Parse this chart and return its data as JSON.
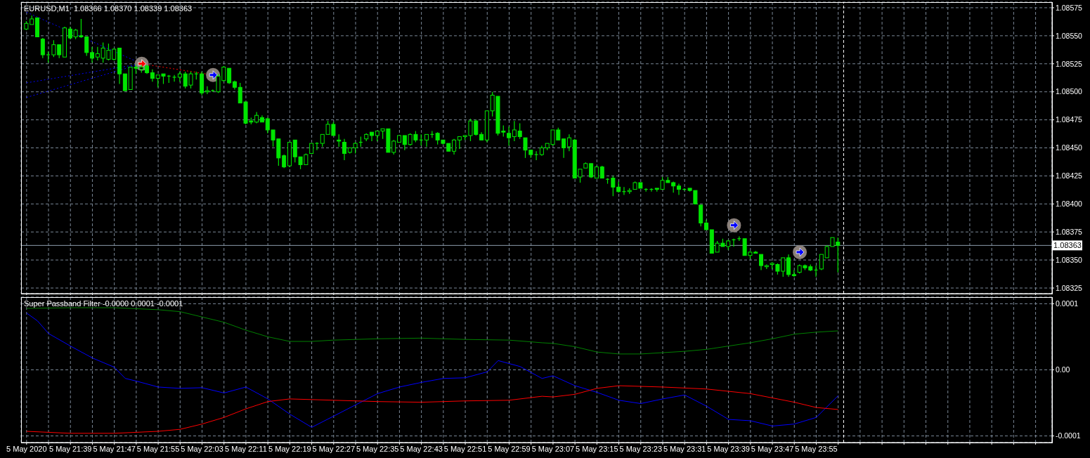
{
  "chart_data": [
    {
      "type": "candlestick",
      "title": "EURUSD,M1  1.08366 1.08370 1.08339 1.08363",
      "color": "#00e600",
      "x": [
        "2020-05-05T21:31",
        "2020-05-05T21:32",
        "2020-05-05T21:33",
        "2020-05-05T21:34",
        "2020-05-05T21:35",
        "2020-05-05T21:36",
        "2020-05-05T21:37",
        "2020-05-05T21:38",
        "2020-05-05T21:39",
        "2020-05-05T21:40",
        "2020-05-05T21:41",
        "2020-05-05T21:42",
        "2020-05-05T21:43",
        "2020-05-05T21:44",
        "2020-05-05T21:45",
        "2020-05-05T21:46",
        "2020-05-05T21:47",
        "2020-05-05T21:48",
        "2020-05-05T21:49",
        "2020-05-05T21:50",
        "2020-05-05T21:51",
        "2020-05-05T21:52",
        "2020-05-05T21:53",
        "2020-05-05T21:54",
        "2020-05-05T21:55",
        "2020-05-05T21:56",
        "2020-05-05T21:57",
        "2020-05-05T21:58",
        "2020-05-05T21:59",
        "2020-05-05T22:00",
        "2020-05-05T22:01",
        "2020-05-05T22:02",
        "2020-05-05T22:03",
        "2020-05-05T22:04",
        "2020-05-05T22:05",
        "2020-05-05T22:06",
        "2020-05-05T22:07",
        "2020-05-05T22:08",
        "2020-05-05T22:09",
        "2020-05-05T22:10",
        "2020-05-05T22:11",
        "2020-05-05T22:12",
        "2020-05-05T22:13",
        "2020-05-05T22:14",
        "2020-05-05T22:15",
        "2020-05-05T22:16",
        "2020-05-05T22:17",
        "2020-05-05T22:18",
        "2020-05-05T22:19",
        "2020-05-05T22:20",
        "2020-05-05T22:21",
        "2020-05-05T22:22",
        "2020-05-05T22:23",
        "2020-05-05T22:24",
        "2020-05-05T22:25",
        "2020-05-05T22:26",
        "2020-05-05T22:27",
        "2020-05-05T22:28",
        "2020-05-05T22:29",
        "2020-05-05T22:30",
        "2020-05-05T22:31",
        "2020-05-05T22:32",
        "2020-05-05T22:33",
        "2020-05-05T22:34",
        "2020-05-05T22:35",
        "2020-05-05T22:36",
        "2020-05-05T22:37",
        "2020-05-05T22:38",
        "2020-05-05T22:39",
        "2020-05-05T22:40",
        "2020-05-05T22:41",
        "2020-05-05T22:42",
        "2020-05-05T22:43",
        "2020-05-05T22:44",
        "2020-05-05T22:45",
        "2020-05-05T22:46",
        "2020-05-05T22:47",
        "2020-05-05T22:48",
        "2020-05-05T22:49",
        "2020-05-05T22:50",
        "2020-05-05T22:51",
        "2020-05-05T22:52",
        "2020-05-05T22:53",
        "2020-05-05T22:54",
        "2020-05-05T22:55",
        "2020-05-05T22:56",
        "2020-05-05T22:57",
        "2020-05-05T22:58",
        "2020-05-05T22:59",
        "2020-05-05T23:00",
        "2020-05-05T23:01",
        "2020-05-05T23:02",
        "2020-05-05T23:03",
        "2020-05-05T23:04",
        "2020-05-05T23:05",
        "2020-05-05T23:06",
        "2020-05-05T23:07",
        "2020-05-05T23:08",
        "2020-05-05T23:09",
        "2020-05-05T23:10",
        "2020-05-05T23:11",
        "2020-05-05T23:12",
        "2020-05-05T23:13",
        "2020-05-05T23:14",
        "2020-05-05T23:15",
        "2020-05-05T23:16",
        "2020-05-05T23:17",
        "2020-05-05T23:18",
        "2020-05-05T23:19",
        "2020-05-05T23:20",
        "2020-05-05T23:21",
        "2020-05-05T23:22",
        "2020-05-05T23:23",
        "2020-05-05T23:24",
        "2020-05-05T23:25",
        "2020-05-05T23:26",
        "2020-05-05T23:27",
        "2020-05-05T23:28",
        "2020-05-05T23:29",
        "2020-05-05T23:30",
        "2020-05-05T23:31",
        "2020-05-05T23:32",
        "2020-05-05T23:33",
        "2020-05-05T23:34",
        "2020-05-05T23:35",
        "2020-05-05T23:36",
        "2020-05-05T23:37",
        "2020-05-05T23:38",
        "2020-05-05T23:39",
        "2020-05-05T23:40",
        "2020-05-05T23:41",
        "2020-05-05T23:42",
        "2020-05-05T23:43",
        "2020-05-05T23:44",
        "2020-05-05T23:45",
        "2020-05-05T23:46",
        "2020-05-05T23:47",
        "2020-05-05T23:48",
        "2020-05-05T23:49",
        "2020-05-05T23:50",
        "2020-05-05T23:51",
        "2020-05-05T23:52",
        "2020-05-05T23:53",
        "2020-05-05T23:54",
        "2020-05-05T23:55",
        "2020-05-05T23:56",
        "2020-05-05T23:57",
        "2020-05-05T23:58",
        "2020-05-05T23:59"
      ],
      "ohlc": [
        [
          1.08556,
          1.08563,
          1.08555,
          1.08561
        ],
        [
          1.0856,
          1.08568,
          1.0856,
          1.08565
        ],
        [
          1.08566,
          1.08566,
          1.08549,
          1.08549
        ],
        [
          1.08547,
          1.08548,
          1.0853,
          1.08533
        ],
        [
          1.08533,
          1.08536,
          1.08526,
          1.08533
        ],
        [
          1.08533,
          1.08546,
          1.08531,
          1.08542
        ],
        [
          1.08542,
          1.08542,
          1.0853,
          1.08533
        ],
        [
          1.08531,
          1.08558,
          1.08531,
          1.08557
        ],
        [
          1.08556,
          1.08558,
          1.08547,
          1.08548
        ],
        [
          1.08549,
          1.08556,
          1.08547,
          1.08555
        ],
        [
          1.0855,
          1.08565,
          1.08548,
          1.08549
        ],
        [
          1.08549,
          1.08549,
          1.08532,
          1.08535
        ],
        [
          1.08535,
          1.0854,
          1.08526,
          1.0853
        ],
        [
          1.08531,
          1.0854,
          1.08528,
          1.08534
        ],
        [
          1.0853,
          1.08544,
          1.08526,
          1.08539
        ],
        [
          1.08529,
          1.08543,
          1.08528,
          1.08537
        ],
        [
          1.08529,
          1.08539,
          1.08528,
          1.08538
        ],
        [
          1.08539,
          1.08539,
          1.08507,
          1.08516
        ],
        [
          1.08516,
          1.08516,
          1.08501,
          1.08501
        ],
        [
          1.08502,
          1.08522,
          1.08502,
          1.08522
        ],
        [
          1.08522,
          1.08524,
          1.08516,
          1.08521
        ],
        [
          1.0852,
          1.08524,
          1.08517,
          1.08522
        ],
        [
          1.08523,
          1.08524,
          1.08516,
          1.08517
        ],
        [
          1.08517,
          1.0852,
          1.08509,
          1.08512
        ],
        [
          1.08512,
          1.08515,
          1.08504,
          1.08515
        ],
        [
          1.08516,
          1.08516,
          1.08507,
          1.08514
        ],
        [
          1.08514,
          1.08515,
          1.08508,
          1.08514
        ],
        [
          1.08513,
          1.08515,
          1.08509,
          1.08513
        ],
        [
          1.08513,
          1.08518,
          1.08509,
          1.08516
        ],
        [
          1.08516,
          1.08518,
          1.08503,
          1.08505
        ],
        [
          1.08506,
          1.08518,
          1.08503,
          1.08516
        ],
        [
          1.08516,
          1.08518,
          1.08511,
          1.08516
        ],
        [
          1.08516,
          1.08518,
          1.08497,
          1.08499
        ],
        [
          1.085,
          1.08505,
          1.08498,
          1.08501
        ],
        [
          1.08501,
          1.08502,
          1.085,
          1.08501
        ],
        [
          1.085,
          1.08516,
          1.08499,
          1.08514
        ],
        [
          1.0851,
          1.08523,
          1.08509,
          1.08522
        ],
        [
          1.08521,
          1.08521,
          1.08507,
          1.08508
        ],
        [
          1.08509,
          1.0851,
          1.08502,
          1.08504
        ],
        [
          1.08504,
          1.08508,
          1.0849,
          1.0849
        ],
        [
          1.08491,
          1.08491,
          1.08471,
          1.08472
        ],
        [
          1.08474,
          1.08477,
          1.08471,
          1.08473
        ],
        [
          1.08473,
          1.08482,
          1.08472,
          1.08479
        ],
        [
          1.08477,
          1.08479,
          1.08473,
          1.08473
        ],
        [
          1.08476,
          1.08477,
          1.08463,
          1.08466
        ],
        [
          1.08466,
          1.08466,
          1.08451,
          1.08457
        ],
        [
          1.08458,
          1.08458,
          1.08434,
          1.08441
        ],
        [
          1.08443,
          1.08444,
          1.08432,
          1.08433
        ],
        [
          1.08434,
          1.08455,
          1.08433,
          1.08455
        ],
        [
          1.08457,
          1.08457,
          1.08437,
          1.08442
        ],
        [
          1.08442,
          1.08442,
          1.08431,
          1.08435
        ],
        [
          1.08435,
          1.08445,
          1.08435,
          1.08444
        ],
        [
          1.08445,
          1.08454,
          1.08445,
          1.08454
        ],
        [
          1.08454,
          1.08455,
          1.08448,
          1.08454
        ],
        [
          1.08454,
          1.08462,
          1.08451,
          1.08462
        ],
        [
          1.08462,
          1.08474,
          1.08462,
          1.08471
        ],
        [
          1.08471,
          1.08473,
          1.08461,
          1.08461
        ],
        [
          1.08457,
          1.08462,
          1.08451,
          1.08456
        ],
        [
          1.08455,
          1.08458,
          1.08439,
          1.08445
        ],
        [
          1.08446,
          1.0845,
          1.08445,
          1.0845
        ],
        [
          1.0845,
          1.08455,
          1.08445,
          1.08454
        ],
        [
          1.08455,
          1.0846,
          1.08451,
          1.08455
        ],
        [
          1.08458,
          1.08463,
          1.08456,
          1.08462
        ],
        [
          1.08464,
          1.08464,
          1.08456,
          1.08461
        ],
        [
          1.08461,
          1.08465,
          1.08456,
          1.08465
        ],
        [
          1.08465,
          1.08467,
          1.08458,
          1.08467
        ],
        [
          1.08467,
          1.08467,
          1.08446,
          1.08446
        ],
        [
          1.08446,
          1.08457,
          1.08444,
          1.08456
        ],
        [
          1.08455,
          1.08461,
          1.08455,
          1.08461
        ],
        [
          1.08461,
          1.08461,
          1.08448,
          1.08453
        ],
        [
          1.08453,
          1.08463,
          1.08452,
          1.08462
        ],
        [
          1.08462,
          1.08465,
          1.08455,
          1.08457
        ],
        [
          1.08457,
          1.08462,
          1.08452,
          1.08457
        ],
        [
          1.08457,
          1.08462,
          1.08451,
          1.08462
        ],
        [
          1.08462,
          1.08465,
          1.08459,
          1.08462
        ],
        [
          1.08463,
          1.08464,
          1.08453,
          1.08457
        ],
        [
          1.08457,
          1.08457,
          1.08453,
          1.08454
        ],
        [
          1.08454,
          1.08454,
          1.08447,
          1.08447
        ],
        [
          1.08447,
          1.08458,
          1.08444,
          1.08457
        ],
        [
          1.08457,
          1.0846,
          1.08449,
          1.0846
        ],
        [
          1.0846,
          1.08461,
          1.08457,
          1.08461
        ],
        [
          1.08461,
          1.08476,
          1.08456,
          1.08474
        ],
        [
          1.08474,
          1.08475,
          1.08461,
          1.08462
        ],
        [
          1.08462,
          1.08464,
          1.08457,
          1.08457
        ],
        [
          1.08457,
          1.08483,
          1.08455,
          1.08483
        ],
        [
          1.08483,
          1.085,
          1.08478,
          1.08497
        ],
        [
          1.08496,
          1.08496,
          1.08461,
          1.08463
        ],
        [
          1.08465,
          1.0847,
          1.0846,
          1.08464
        ],
        [
          1.08463,
          1.08469,
          1.08452,
          1.08459
        ],
        [
          1.0846,
          1.08474,
          1.08456,
          1.08466
        ],
        [
          1.08465,
          1.08472,
          1.08458,
          1.0846
        ],
        [
          1.08459,
          1.08459,
          1.08441,
          1.08448
        ],
        [
          1.08448,
          1.08448,
          1.08441,
          1.08444
        ],
        [
          1.08444,
          1.08447,
          1.08439,
          1.08444
        ],
        [
          1.08444,
          1.08452,
          1.08443,
          1.0845
        ],
        [
          1.0845,
          1.08454,
          1.08448,
          1.08454
        ],
        [
          1.08453,
          1.08466,
          1.08452,
          1.08466
        ],
        [
          1.08466,
          1.08468,
          1.08457,
          1.08457
        ],
        [
          1.08458,
          1.08458,
          1.08441,
          1.0845
        ],
        [
          1.08451,
          1.08462,
          1.08447,
          1.08459
        ],
        [
          1.08457,
          1.08458,
          1.08423,
          1.08423
        ],
        [
          1.08424,
          1.08431,
          1.08419,
          1.08431
        ],
        [
          1.08432,
          1.08437,
          1.08432,
          1.08436
        ],
        [
          1.08436,
          1.08436,
          1.08423,
          1.08424
        ],
        [
          1.08423,
          1.08434,
          1.08423,
          1.08433
        ],
        [
          1.08433,
          1.08434,
          1.08423,
          1.08423
        ],
        [
          1.08422,
          1.08423,
          1.08418,
          1.08422
        ],
        [
          1.08423,
          1.08425,
          1.08407,
          1.08415
        ],
        [
          1.08415,
          1.0842,
          1.0841,
          1.08411
        ],
        [
          1.08411,
          1.08415,
          1.08408,
          1.08411
        ],
        [
          1.08411,
          1.08414,
          1.08409,
          1.08412
        ],
        [
          1.08413,
          1.0842,
          1.08413,
          1.08419
        ],
        [
          1.08419,
          1.08419,
          1.08414,
          1.08414
        ],
        [
          1.08413,
          1.08414,
          1.08411,
          1.08413
        ],
        [
          1.08413,
          1.08414,
          1.08411,
          1.08413
        ],
        [
          1.08414,
          1.08414,
          1.08411,
          1.08413
        ],
        [
          1.08413,
          1.08424,
          1.08413,
          1.08421
        ],
        [
          1.08421,
          1.08424,
          1.08419,
          1.08419
        ],
        [
          1.08419,
          1.0842,
          1.0841,
          1.08416
        ],
        [
          1.08416,
          1.08418,
          1.08408,
          1.08413
        ],
        [
          1.08413,
          1.08414,
          1.08412,
          1.08413
        ],
        [
          1.08414,
          1.08414,
          1.08411,
          1.08412
        ],
        [
          1.08412,
          1.08412,
          1.084,
          1.084
        ],
        [
          1.08399,
          1.08399,
          1.0838,
          1.08383
        ],
        [
          1.08383,
          1.08386,
          1.08377,
          1.08377
        ],
        [
          1.08377,
          1.08377,
          1.08356,
          1.08356
        ],
        [
          1.08357,
          1.08367,
          1.08357,
          1.08365
        ],
        [
          1.08365,
          1.08369,
          1.08362,
          1.08362
        ],
        [
          1.08362,
          1.08368,
          1.08359,
          1.08367
        ],
        [
          1.08368,
          1.08369,
          1.08362,
          1.08368
        ],
        [
          1.08369,
          1.08371,
          1.08367,
          1.08369
        ],
        [
          1.08369,
          1.08369,
          1.08354,
          1.08354
        ],
        [
          1.08354,
          1.08358,
          1.08351,
          1.08357
        ],
        [
          1.08357,
          1.08358,
          1.08356,
          1.08356
        ],
        [
          1.08355,
          1.08355,
          1.08341,
          1.08345
        ],
        [
          1.08344,
          1.08346,
          1.08342,
          1.08345
        ],
        [
          1.08346,
          1.08348,
          1.08342,
          1.08347
        ],
        [
          1.08346,
          1.08347,
          1.08337,
          1.0834
        ],
        [
          1.0834,
          1.08352,
          1.08335,
          1.08352
        ],
        [
          1.08352,
          1.08355,
          1.08335,
          1.08337
        ],
        [
          1.08337,
          1.08341,
          1.08335,
          1.08336
        ],
        [
          1.08339,
          1.08346,
          1.08338,
          1.08345
        ],
        [
          1.08345,
          1.08346,
          1.08341,
          1.08343
        ],
        [
          1.08344,
          1.08346,
          1.0834,
          1.08341
        ],
        [
          1.08341,
          1.08345,
          1.08335,
          1.08341
        ],
        [
          1.08342,
          1.08355,
          1.08341,
          1.08355
        ],
        [
          1.08352,
          1.08363,
          1.08352,
          1.08362
        ],
        [
          1.08362,
          1.0837,
          1.08362,
          1.0837
        ],
        [
          1.08366,
          1.0837,
          1.08339,
          1.08363
        ]
      ],
      "series": [
        {
          "type": "line",
          "color": "#0000ff",
          "line_style": "dotted",
          "x": [
            "2020-05-05T21:31",
            "2020-05-05T21:52"
          ],
          "values": [
            1.08571,
            1.08525
          ]
        },
        {
          "type": "line",
          "color": "#0000ff",
          "line_style": "dotted",
          "x": [
            "2020-05-05T21:31",
            "2020-05-05T21:52"
          ],
          "values": [
            1.08508,
            1.08525
          ]
        },
        {
          "type": "line",
          "color": "#0000ff",
          "line_style": "dotted",
          "x": [
            "2020-05-05T21:31",
            "2020-05-05T21:52"
          ],
          "values": [
            1.08495,
            1.08525
          ]
        },
        {
          "type": "line",
          "color": "#ff0000",
          "line_style": "dotted",
          "x": [
            "2020-05-05T21:52",
            "2020-05-05T22:05"
          ],
          "values": [
            1.08525,
            1.08515
          ]
        },
        {
          "type": "scatter",
          "x": [
            "2020-05-05T21:52",
            "2020-05-05T22:05",
            "2020-05-05T23:40",
            "2020-05-05T23:52"
          ],
          "values": [
            1.08525,
            1.08515,
            1.08381,
            1.08357
          ],
          "colors": [
            "#ff0000",
            "#0000ff",
            "#0000ff",
            "#0000ff"
          ]
        }
      ],
      "xlim": [
        "2020-05-05T21:30",
        "2020-05-06T00:38"
      ],
      "ylim": [
        1.0832,
        1.0858
      ],
      "xticks": [
        {
          "value": "2020-05-05T21:31",
          "label": null
        },
        {
          "value": "2020-05-05T21:35",
          "label": null
        },
        {
          "value": "2020-05-05T21:39",
          "label": null
        },
        {
          "value": "2020-05-05T21:43",
          "label": null
        },
        {
          "value": "2020-05-05T21:47",
          "label": null
        },
        {
          "value": "2020-05-05T21:51",
          "label": null
        },
        {
          "value": "2020-05-05T21:55",
          "label": null
        },
        {
          "value": "2020-05-05T21:59",
          "label": null
        },
        {
          "value": "2020-05-05T22:03",
          "label": null
        },
        {
          "value": "2020-05-05T22:07",
          "label": null
        },
        {
          "value": "2020-05-05T22:11",
          "label": null
        },
        {
          "value": "2020-05-05T22:15",
          "label": null
        },
        {
          "value": "2020-05-05T22:19",
          "label": null
        },
        {
          "value": "2020-05-05T22:23",
          "label": null
        },
        {
          "value": "2020-05-05T22:27",
          "label": null
        },
        {
          "value": "2020-05-05T22:31",
          "label": null
        },
        {
          "value": "2020-05-05T22:35",
          "label": null
        },
        {
          "value": "2020-05-05T22:39",
          "label": null
        },
        {
          "value": "2020-05-05T22:43",
          "label": null
        },
        {
          "value": "2020-05-05T22:47",
          "label": null
        },
        {
          "value": "2020-05-05T22:51",
          "label": null
        },
        {
          "value": "2020-05-05T22:55",
          "label": null
        },
        {
          "value": "2020-05-05T22:59",
          "label": null
        },
        {
          "value": "2020-05-05T23:03",
          "label": null
        },
        {
          "value": "2020-05-05T23:07",
          "label": null
        },
        {
          "value": "2020-05-05T23:11",
          "label": null
        },
        {
          "value": "2020-05-05T23:15",
          "label": null
        },
        {
          "value": "2020-05-05T23:19",
          "label": null
        },
        {
          "value": "2020-05-05T23:23",
          "label": null
        },
        {
          "value": "2020-05-05T23:27",
          "label": null
        },
        {
          "value": "2020-05-05T23:31",
          "label": null
        },
        {
          "value": "2020-05-05T23:35",
          "label": null
        },
        {
          "value": "2020-05-05T23:39",
          "label": null
        },
        {
          "value": "2020-05-05T23:43",
          "label": null
        },
        {
          "value": "2020-05-05T23:47",
          "label": null
        },
        {
          "value": "2020-05-05T23:51",
          "label": null
        },
        {
          "value": "2020-05-05T23:55",
          "label": null
        },
        {
          "value": "2020-05-05T23:59",
          "label": null
        },
        {
          "value": "2020-05-06T00:03",
          "label": null
        },
        {
          "value": "2020-05-06T00:07",
          "label": null
        },
        {
          "value": "2020-05-06T00:11",
          "label": null
        },
        {
          "value": "2020-05-06T00:15",
          "label": null
        },
        {
          "value": "2020-05-06T00:19",
          "label": null
        },
        {
          "value": "2020-05-06T00:23",
          "label": null
        },
        {
          "value": "2020-05-06T00:27",
          "label": null
        },
        {
          "value": "2020-05-06T00:31",
          "label": null
        },
        {
          "value": "2020-05-06T00:35",
          "label": null
        }
      ],
      "yticks": [
        1.08325,
        {
          "value": 1.0835,
          "label": "1.08350"
        },
        1.08375,
        {
          "value": 1.084,
          "label": "1.08400"
        },
        1.08425,
        {
          "value": 1.0845,
          "label": "1.08450"
        },
        1.08475,
        {
          "value": 1.085,
          "label": "1.08500"
        },
        1.08525,
        {
          "value": 1.0855,
          "label": "1.08550"
        },
        1.08575
      ],
      "grid": true,
      "tick_labels": "y",
      "ref_lines": [
        {
          "axis": "y",
          "value": 1.08363,
          "label": "1.08363",
          "color": "#8c9cab"
        },
        {
          "axis": "x",
          "value": "2020-05-06T00:00",
          "color": "#ffffff",
          "line_style": "dashed"
        }
      ]
    },
    {
      "type": "line",
      "title": "Super Passband Filter -0.0000 0.0001 -0.0001",
      "series": [
        {
          "color": "#008000",
          "x": [
            "2020-05-05T21:31",
            "2020-05-05T21:39",
            "2020-05-05T21:47",
            "2020-05-05T21:55",
            "2020-05-05T21:59",
            "2020-05-05T22:03",
            "2020-05-05T22:07",
            "2020-05-05T22:11",
            "2020-05-05T22:15",
            "2020-05-05T22:19",
            "2020-05-05T22:23",
            "2020-05-05T22:27",
            "2020-05-05T22:35",
            "2020-05-05T22:43",
            "2020-05-05T22:51",
            "2020-05-05T22:59",
            "2020-05-05T23:05",
            "2020-05-05T23:07",
            "2020-05-05T23:11",
            "2020-05-05T23:15",
            "2020-05-05T23:19",
            "2020-05-05T23:23",
            "2020-05-05T23:27",
            "2020-05-05T23:31",
            "2020-05-05T23:35",
            "2020-05-05T23:39",
            "2020-05-05T23:43",
            "2020-05-05T23:47",
            "2020-05-05T23:51",
            "2020-05-05T23:55",
            "2020-05-05T23:59"
          ],
          "values": [
            9.3e-05,
            9.4e-05,
            9.4e-05,
            9.1e-05,
            8.8e-05,
            8e-05,
            7.2e-05,
            6e-05,
            5e-05,
            4.3e-05,
            4.3e-05,
            4.5e-05,
            4.7e-05,
            4.8e-05,
            4.6e-05,
            4.5e-05,
            4.1e-05,
            4e-05,
            3.5e-05,
            2.7e-05,
            2.4e-05,
            2.4e-05,
            2.6e-05,
            2.8e-05,
            3.1e-05,
            3.6e-05,
            4.1e-05,
            4.7e-05,
            5.4e-05,
            5.7e-05,
            5.9e-05
          ]
        },
        {
          "color": "#0000ff",
          "x": [
            "2020-05-05T21:31",
            "2020-05-05T21:33",
            "2020-05-05T21:35",
            "2020-05-05T21:39",
            "2020-05-05T21:43",
            "2020-05-05T21:47",
            "2020-05-05T21:49",
            "2020-05-05T21:51",
            "2020-05-05T21:55",
            "2020-05-05T21:59",
            "2020-05-05T22:03",
            "2020-05-05T22:07",
            "2020-05-05T22:11",
            "2020-05-05T22:15",
            "2020-05-05T22:19",
            "2020-05-05T22:23",
            "2020-05-05T22:27",
            "2020-05-05T22:31",
            "2020-05-05T22:35",
            "2020-05-05T22:39",
            "2020-05-05T22:43",
            "2020-05-05T22:47",
            "2020-05-05T22:51",
            "2020-05-05T22:55",
            "2020-05-05T22:57",
            "2020-05-05T23:01",
            "2020-05-05T23:05",
            "2020-05-05T23:07",
            "2020-05-05T23:11",
            "2020-05-05T23:15",
            "2020-05-05T23:19",
            "2020-05-05T23:23",
            "2020-05-05T23:27",
            "2020-05-05T23:31",
            "2020-05-05T23:35",
            "2020-05-05T23:39",
            "2020-05-05T23:43",
            "2020-05-05T23:47",
            "2020-05-05T23:51",
            "2020-05-05T23:55",
            "2020-05-05T23:59"
          ],
          "values": [
            8.6e-05,
            7.4e-05,
            5.5e-05,
            3.6e-05,
            1.8e-05,
            4e-06,
            -1.3e-05,
            -1.7e-05,
            -2.6e-05,
            -2.8e-05,
            -2.7e-05,
            -3.5e-05,
            -2.6e-05,
            -4.4e-05,
            -6.7e-05,
            -8.7e-05,
            -7e-05,
            -5.3e-05,
            -3.6e-05,
            -2.6e-05,
            -1.9e-05,
            -1.3e-05,
            -1.2e-05,
            -3e-06,
            1.4e-05,
            5e-06,
            -1.3e-05,
            -9e-06,
            -2.4e-05,
            -3.4e-05,
            -4.6e-05,
            -5.1e-05,
            -4.4e-05,
            -3.8e-05,
            -5.5e-05,
            -7.5e-05,
            -7.7e-05,
            -8.5e-05,
            -8.2e-05,
            -7.2e-05,
            -3.9e-05
          ]
        },
        {
          "color": "#ff0000",
          "x": [
            "2020-05-05T21:31",
            "2020-05-05T21:39",
            "2020-05-05T21:47",
            "2020-05-05T21:55",
            "2020-05-05T21:59",
            "2020-05-05T22:03",
            "2020-05-05T22:07",
            "2020-05-05T22:11",
            "2020-05-05T22:15",
            "2020-05-05T22:19",
            "2020-05-05T22:27",
            "2020-05-05T22:35",
            "2020-05-05T22:43",
            "2020-05-05T22:51",
            "2020-05-05T22:59",
            "2020-05-05T23:05",
            "2020-05-05T23:07",
            "2020-05-05T23:11",
            "2020-05-05T23:15",
            "2020-05-05T23:19",
            "2020-05-05T23:27",
            "2020-05-05T23:35",
            "2020-05-05T23:43",
            "2020-05-05T23:51",
            "2020-05-05T23:55",
            "2020-05-05T23:59"
          ],
          "values": [
            -9.3e-05,
            -9.6e-05,
            -9.6e-05,
            -9.3e-05,
            -9e-05,
            -8.2e-05,
            -7.2e-05,
            -5.9e-05,
            -4.8e-05,
            -4.4e-05,
            -4.6e-05,
            -4.8e-05,
            -4.9e-05,
            -4.7e-05,
            -4.6e-05,
            -4e-05,
            -4.1e-05,
            -3.7e-05,
            -2.8e-05,
            -2.4e-05,
            -2.6e-05,
            -2.9e-05,
            -3.6e-05,
            -4.9e-05,
            -5.7e-05,
            -6e-05
          ]
        }
      ],
      "xlim": [
        "2020-05-05T21:30",
        "2020-05-06T00:38"
      ],
      "ylim": [
        -0.00011,
        0.00011
      ],
      "xticks": [
        {
          "value": "2020-05-05T21:31",
          "label": "5 May 2020"
        },
        {
          "value": "2020-05-05T21:35",
          "label": null
        },
        {
          "value": "2020-05-05T21:39",
          "label": "5 May 21:39"
        },
        {
          "value": "2020-05-05T21:43",
          "label": null
        },
        {
          "value": "2020-05-05T21:47",
          "label": "5 May 21:47"
        },
        {
          "value": "2020-05-05T21:51",
          "label": null
        },
        {
          "value": "2020-05-05T21:55",
          "label": "5 May 21:55"
        },
        {
          "value": "2020-05-05T21:59",
          "label": null
        },
        {
          "value": "2020-05-05T22:03",
          "label": "5 May 22:03"
        },
        {
          "value": "2020-05-05T22:07",
          "label": null
        },
        {
          "value": "2020-05-05T22:11",
          "label": "5 May 22:11"
        },
        {
          "value": "2020-05-05T22:15",
          "label": null
        },
        {
          "value": "2020-05-05T22:19",
          "label": "5 May 22:19"
        },
        {
          "value": "2020-05-05T22:23",
          "label": null
        },
        {
          "value": "2020-05-05T22:27",
          "label": "5 May 22:27"
        },
        {
          "value": "2020-05-05T22:31",
          "label": null
        },
        {
          "value": "2020-05-05T22:35",
          "label": "5 May 22:35"
        },
        {
          "value": "2020-05-05T22:39",
          "label": null
        },
        {
          "value": "2020-05-05T22:43",
          "label": "5 May 22:43"
        },
        {
          "value": "2020-05-05T22:47",
          "label": null
        },
        {
          "value": "2020-05-05T22:51",
          "label": "5 May 22:51"
        },
        {
          "value": "2020-05-05T22:55",
          "label": null
        },
        {
          "value": "2020-05-05T22:59",
          "label": "5 May 22:59"
        },
        {
          "value": "2020-05-05T23:03",
          "label": null
        },
        {
          "value": "2020-05-05T23:07",
          "label": "5 May 23:07"
        },
        {
          "value": "2020-05-05T23:11",
          "label": null
        },
        {
          "value": "2020-05-05T23:15",
          "label": "5 May 23:15"
        },
        {
          "value": "2020-05-05T23:19",
          "label": null
        },
        {
          "value": "2020-05-05T23:23",
          "label": "5 May 23:23"
        },
        {
          "value": "2020-05-05T23:27",
          "label": null
        },
        {
          "value": "2020-05-05T23:31",
          "label": "5 May 23:31"
        },
        {
          "value": "2020-05-05T23:35",
          "label": null
        },
        {
          "value": "2020-05-05T23:39",
          "label": "5 May 23:39"
        },
        {
          "value": "2020-05-05T23:43",
          "label": null
        },
        {
          "value": "2020-05-05T23:47",
          "label": "5 May 23:47"
        },
        {
          "value": "2020-05-05T23:51",
          "label": null
        },
        {
          "value": "2020-05-05T23:55",
          "label": "5 May 23:55"
        },
        {
          "value": "2020-05-05T23:59",
          "label": null
        },
        {
          "value": "2020-05-06T00:03",
          "label": null
        },
        {
          "value": "2020-05-06T00:07",
          "label": null
        },
        {
          "value": "2020-05-06T00:11",
          "label": null
        },
        {
          "value": "2020-05-06T00:15",
          "label": null
        },
        {
          "value": "2020-05-06T00:19",
          "label": null
        },
        {
          "value": "2020-05-06T00:23",
          "label": null
        },
        {
          "value": "2020-05-06T00:27",
          "label": null
        },
        {
          "value": "2020-05-06T00:31",
          "label": null
        },
        {
          "value": "2020-05-06T00:35",
          "label": null
        }
      ],
      "yticks": [
        -0.0001,
        {
          "value": 0,
          "label": "0.00"
        },
        0.0001
      ],
      "grid": true,
      "ref_lines": [
        {
          "axis": "x",
          "value": "2020-05-06T00:00",
          "color": "#ffffff",
          "line_style": "dashed"
        }
      ]
    }
  ]
}
